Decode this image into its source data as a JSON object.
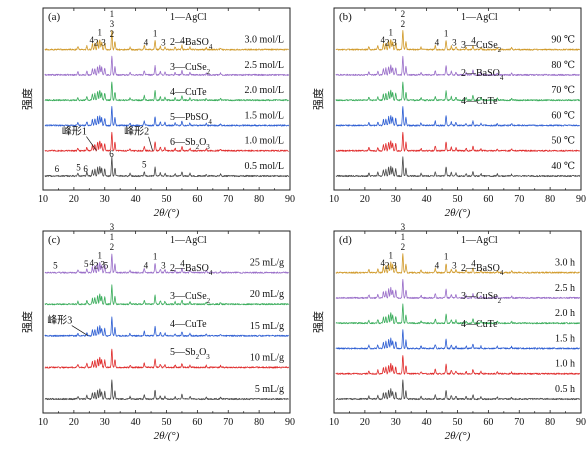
{
  "figure": {
    "x_axis_label": "2θ/(°)",
    "y_axis_label": "强度",
    "colors": [
      "#4a4a4a",
      "#e02d2d",
      "#2f5fd3",
      "#3bad5c",
      "#9a6fc9",
      "#d19b2c"
    ],
    "peak_fingerprint": [
      [
        21.3,
        0.12
      ],
      [
        24.2,
        0.15
      ],
      [
        26.0,
        0.24
      ],
      [
        26.8,
        0.28
      ],
      [
        27.7,
        0.36
      ],
      [
        28.4,
        0.42
      ],
      [
        29.0,
        0.32
      ],
      [
        30.0,
        0.3
      ],
      [
        32.3,
        0.78
      ],
      [
        33.3,
        0.34
      ],
      [
        38.2,
        0.1
      ],
      [
        42.8,
        0.18
      ],
      [
        46.3,
        0.38
      ],
      [
        48.0,
        0.14
      ],
      [
        49.5,
        0.12
      ],
      [
        52.8,
        0.1
      ],
      [
        55.0,
        0.18
      ],
      [
        57.6,
        0.1
      ],
      [
        62.9,
        0.08
      ],
      [
        67.5,
        0.07
      ]
    ]
  },
  "chart_data": [
    {
      "panel_label": "(a)",
      "type": "line",
      "x_ticks": [
        10,
        20,
        30,
        40,
        50,
        60,
        70,
        80,
        90
      ],
      "xlim": [
        10,
        90
      ],
      "series": [
        {
          "name": "0.5 mol/L",
          "offset": 0.0
        },
        {
          "name": "1.0 mol/L",
          "offset": 0.16
        },
        {
          "name": "1.5 mol/L",
          "offset": 0.32
        },
        {
          "name": "2.0 mol/L",
          "offset": 0.48
        },
        {
          "name": "2.5 mol/L",
          "offset": 0.64
        },
        {
          "name": "3.0 mol/L",
          "offset": 0.8
        }
      ],
      "legend": [
        {
          "num": "1",
          "phase": "AgCl",
          "sub": ""
        },
        {
          "num": "2",
          "phase": "BaSO",
          "sub": "4"
        },
        {
          "num": "3",
          "phase": "CuSe",
          "sub": "2"
        },
        {
          "num": "4",
          "phase": "CuTe",
          "sub": ""
        },
        {
          "num": "5",
          "phase": "PbSO",
          "sub": "4"
        },
        {
          "num": "6",
          "phase": "Sb",
          "sub": "2",
          "phase2": "O",
          "sub2": "3"
        }
      ],
      "annotations": [
        {
          "text": "峰形1",
          "x": 27.3,
          "series_index": 1,
          "dx": -22,
          "dy": -16
        },
        {
          "text": "峰形2",
          "x": 45.5,
          "series_index": 1,
          "dx": -16,
          "dy": -16
        }
      ],
      "peak_labels": [
        {
          "series_index": 0,
          "x": 14.5,
          "text": "6"
        },
        {
          "series_index": 0,
          "x": 21.5,
          "text": "5"
        },
        {
          "series_index": 0,
          "x": 23.8,
          "text": "6"
        },
        {
          "series_index": 0,
          "x": 32.2,
          "text": "6"
        },
        {
          "series_index": 0,
          "x": 42.8,
          "text": "5"
        },
        {
          "series_index": 5,
          "x": 25.8,
          "text": "4"
        },
        {
          "series_index": 5,
          "x": 27.2,
          "text": "2"
        },
        {
          "series_index": 5,
          "x": 28.4,
          "text": "1"
        },
        {
          "series_index": 5,
          "x": 29.6,
          "text": "3"
        },
        {
          "series_index": 5,
          "x": 32.3,
          "text": "3"
        },
        {
          "series_index": 5,
          "x": 32.3,
          "text": "1",
          "dy": -10
        },
        {
          "series_index": 5,
          "x": 32.3,
          "text": "2",
          "dy": 10
        },
        {
          "series_index": 5,
          "x": 43.3,
          "text": "4"
        },
        {
          "series_index": 5,
          "x": 46.3,
          "text": "1"
        },
        {
          "series_index": 5,
          "x": 49.0,
          "text": "3"
        },
        {
          "series_index": 5,
          "x": 55.2,
          "text": "4"
        }
      ]
    },
    {
      "panel_label": "(b)",
      "type": "line",
      "x_ticks": [
        10,
        20,
        30,
        40,
        50,
        60,
        70,
        80,
        90
      ],
      "xlim": [
        10,
        90
      ],
      "series": [
        {
          "name": "40 ℃",
          "offset": 0.0
        },
        {
          "name": "50 ℃",
          "offset": 0.16
        },
        {
          "name": "60 ℃",
          "offset": 0.32
        },
        {
          "name": "70 ℃",
          "offset": 0.48
        },
        {
          "name": "80 ℃",
          "offset": 0.64
        },
        {
          "name": "90 ℃",
          "offset": 0.8
        }
      ],
      "legend": [
        {
          "num": "1",
          "phase": "AgCl",
          "sub": ""
        },
        {
          "num": "3",
          "phase": "CuSe",
          "sub": "2"
        },
        {
          "num": "2",
          "phase": "BaSO",
          "sub": "4"
        },
        {
          "num": "4",
          "phase": "CuTe",
          "sub": ""
        }
      ],
      "annotations": [],
      "peak_labels": [
        {
          "series_index": 5,
          "x": 25.8,
          "text": "4"
        },
        {
          "series_index": 5,
          "x": 27.2,
          "text": "2"
        },
        {
          "series_index": 5,
          "x": 28.4,
          "text": "1"
        },
        {
          "series_index": 5,
          "x": 29.6,
          "text": "3"
        },
        {
          "series_index": 5,
          "x": 32.3,
          "text": "2"
        },
        {
          "series_index": 5,
          "x": 32.3,
          "text": "2",
          "dy": -10
        },
        {
          "series_index": 5,
          "x": 43.3,
          "text": "4"
        },
        {
          "series_index": 5,
          "x": 46.3,
          "text": "1"
        },
        {
          "series_index": 5,
          "x": 49.0,
          "text": "3"
        },
        {
          "series_index": 5,
          "x": 55.2,
          "text": "4"
        }
      ]
    },
    {
      "panel_label": "(c)",
      "type": "line",
      "x_ticks": [
        10,
        20,
        30,
        40,
        50,
        60,
        70,
        80,
        90
      ],
      "xlim": [
        10,
        90
      ],
      "series": [
        {
          "name": "5 mL/g",
          "offset": 0.0
        },
        {
          "name": "10 mL/g",
          "offset": 0.2
        },
        {
          "name": "15 mL/g",
          "offset": 0.4
        },
        {
          "name": "20 mL/g",
          "offset": 0.6
        },
        {
          "name": "25 mL/g",
          "offset": 0.8
        }
      ],
      "legend": [
        {
          "num": "1",
          "phase": "AgCl",
          "sub": ""
        },
        {
          "num": "2",
          "phase": "BaSO",
          "sub": "4"
        },
        {
          "num": "3",
          "phase": "CuSe",
          "sub": "2"
        },
        {
          "num": "4",
          "phase": "CuTe",
          "sub": ""
        },
        {
          "num": "5",
          "phase": "Sb",
          "sub": "2",
          "phase2": "O",
          "sub2": "3"
        }
      ],
      "annotations": [
        {
          "text": "峰形3",
          "x": 24.5,
          "series_index": 2,
          "dx": -28,
          "dy": -12
        }
      ],
      "peak_labels": [
        {
          "series_index": 4,
          "x": 14.0,
          "text": "5"
        },
        {
          "series_index": 4,
          "x": 24.0,
          "text": "5"
        },
        {
          "series_index": 4,
          "x": 25.8,
          "text": "4"
        },
        {
          "series_index": 4,
          "x": 27.2,
          "text": "2"
        },
        {
          "series_index": 4,
          "x": 28.4,
          "text": "1"
        },
        {
          "series_index": 4,
          "x": 29.3,
          "text": "3"
        },
        {
          "series_index": 4,
          "x": 30.4,
          "text": "5"
        },
        {
          "series_index": 4,
          "x": 32.3,
          "text": "2"
        },
        {
          "series_index": 4,
          "x": 32.3,
          "text": "1",
          "dy": -10
        },
        {
          "series_index": 4,
          "x": 32.3,
          "text": "3",
          "dy": -20
        },
        {
          "series_index": 4,
          "x": 43.3,
          "text": "4"
        },
        {
          "series_index": 4,
          "x": 46.3,
          "text": "1"
        },
        {
          "series_index": 4,
          "x": 49.0,
          "text": "3"
        },
        {
          "series_index": 4,
          "x": 55.2,
          "text": "4"
        }
      ]
    },
    {
      "panel_label": "(d)",
      "type": "line",
      "x_ticks": [
        10,
        20,
        30,
        40,
        50,
        60,
        70,
        80,
        90
      ],
      "xlim": [
        10,
        90
      ],
      "series": [
        {
          "name": "0.5 h",
          "offset": 0.0
        },
        {
          "name": "1.0 h",
          "offset": 0.16
        },
        {
          "name": "1.5 h",
          "offset": 0.32
        },
        {
          "name": "2.0 h",
          "offset": 0.48
        },
        {
          "name": "2.5 h",
          "offset": 0.64
        },
        {
          "name": "3.0 h",
          "offset": 0.8
        }
      ],
      "legend": [
        {
          "num": "1",
          "phase": "AgCl",
          "sub": ""
        },
        {
          "num": "2",
          "phase": "BaSO",
          "sub": "4"
        },
        {
          "num": "3",
          "phase": "CuSe",
          "sub": "2"
        },
        {
          "num": "4",
          "phase": "CuTe",
          "sub": ""
        }
      ],
      "annotations": [],
      "peak_labels": [
        {
          "series_index": 5,
          "x": 25.8,
          "text": "4"
        },
        {
          "series_index": 5,
          "x": 27.2,
          "text": "2"
        },
        {
          "series_index": 5,
          "x": 28.4,
          "text": "1"
        },
        {
          "series_index": 5,
          "x": 29.6,
          "text": "3"
        },
        {
          "series_index": 5,
          "x": 32.3,
          "text": "2"
        },
        {
          "series_index": 5,
          "x": 32.3,
          "text": "1",
          "dy": -10
        },
        {
          "series_index": 5,
          "x": 32.3,
          "text": "3",
          "dy": -20
        },
        {
          "series_index": 5,
          "x": 43.3,
          "text": "4"
        },
        {
          "series_index": 5,
          "x": 46.3,
          "text": "1"
        },
        {
          "series_index": 5,
          "x": 49.0,
          "text": "3"
        },
        {
          "series_index": 5,
          "x": 55.2,
          "text": "4"
        }
      ]
    }
  ]
}
